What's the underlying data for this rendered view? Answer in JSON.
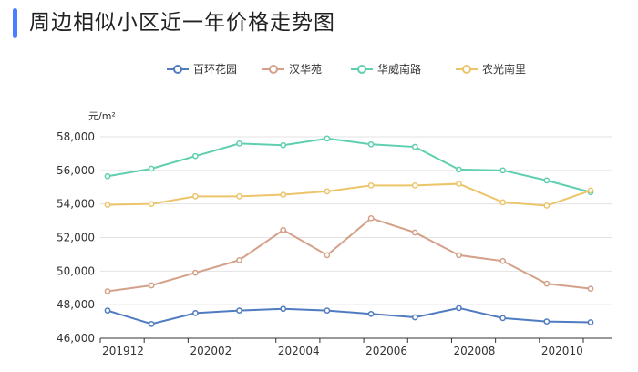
{
  "page": {
    "title": "周边相似小区近一年价格走势图"
  },
  "chart_data": {
    "type": "line",
    "ylabel": "元/m²",
    "ylim": [
      46000,
      58000
    ],
    "y_ticks": [
      46000,
      48000,
      50000,
      52000,
      54000,
      56000,
      58000
    ],
    "y_tick_labels": [
      "46,000",
      "48,000",
      "50,000",
      "52,000",
      "54,000",
      "56,000",
      "58,000"
    ],
    "x": [
      "201912",
      "202001",
      "202002",
      "202003",
      "202004",
      "202005",
      "202006",
      "202007",
      "202008",
      "202009",
      "202010",
      "202011"
    ],
    "x_tick_labels": [
      "201912",
      "202002",
      "202004",
      "202006",
      "202008",
      "202010"
    ],
    "grid": true,
    "legend_position": "top-center",
    "series": [
      {
        "name": "百环花园",
        "color": "#4f7bc0",
        "values": [
          47650,
          46850,
          47500,
          47650,
          47750,
          47650,
          47450,
          47250,
          47800,
          47200,
          47000,
          46950
        ]
      },
      {
        "name": "汉华苑",
        "color": "#d4a088",
        "values": [
          48800,
          49150,
          49900,
          50650,
          52450,
          50950,
          53150,
          52300,
          50950,
          50600,
          49250,
          48950
        ]
      },
      {
        "name": "华威南路",
        "color": "#5fcfb0",
        "values": [
          55650,
          56100,
          56850,
          57600,
          57500,
          57900,
          57550,
          57400,
          56050,
          56000,
          55400,
          54700
        ]
      },
      {
        "name": "农光南里",
        "color": "#ecc56a",
        "values": [
          53950,
          54000,
          54450,
          54450,
          54550,
          54750,
          55100,
          55100,
          55200,
          54100,
          53900,
          54800
        ]
      }
    ]
  }
}
